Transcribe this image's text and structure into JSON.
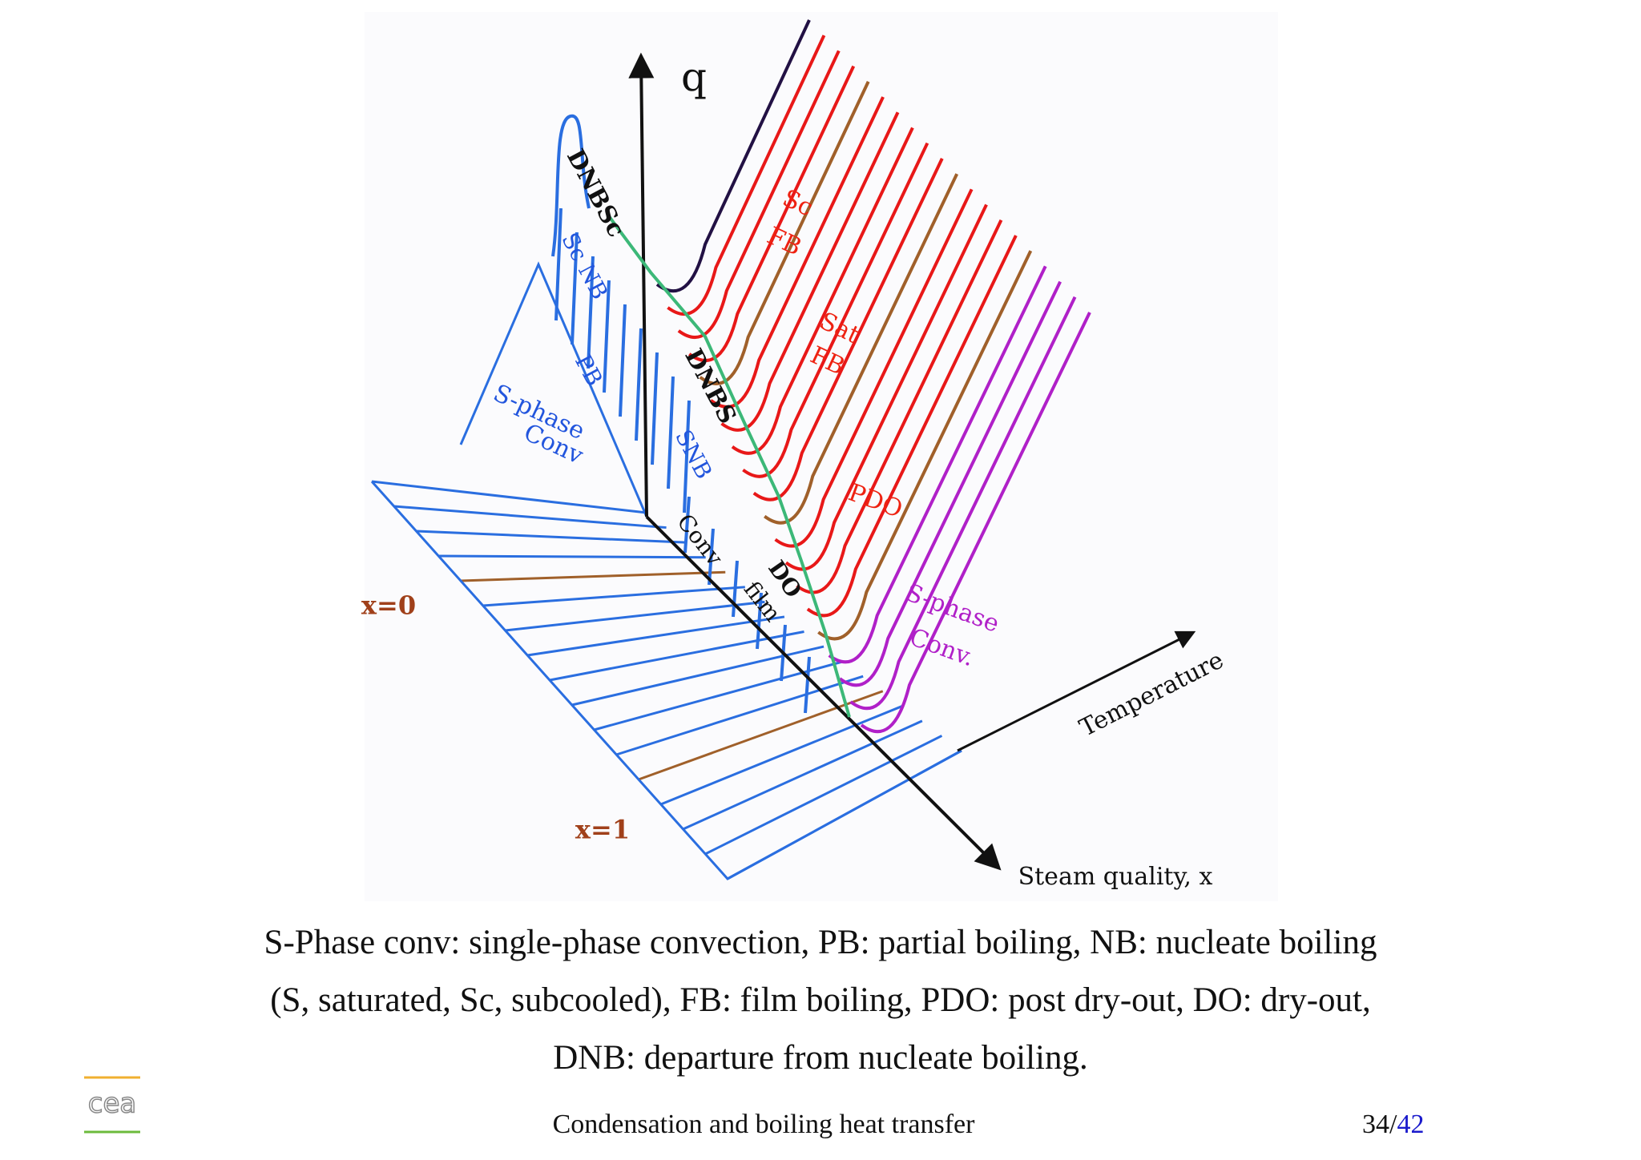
{
  "diagram": {
    "q_axis": "q",
    "dnbsc": "DNBSc",
    "sc_nb": "Sc NB",
    "pb": "PB",
    "s_phase_conv": [
      "S-phase",
      "Conv"
    ],
    "sc_fb": [
      "Sc",
      "FB"
    ],
    "sat_fb": [
      "Sat",
      "FB"
    ],
    "dnbs": "DNBS",
    "snb": "SNB",
    "pdo": "PDO",
    "conv_film": [
      "Conv",
      "film"
    ],
    "do": "DO",
    "s_phase_conv2": [
      "S-phase",
      "Conv."
    ],
    "temperature_axis": "Temperature",
    "steam_quality_axis": "Steam quality, x",
    "x0": "x=0",
    "x1": "x=1"
  },
  "caption": [
    "S-Phase conv: single-phase convection, PB: partial boiling, NB: nucleate boiling",
    "(S, saturated, Sc, subcooled), FB: film boiling, PDO: post dry-out, DO: dry-out,",
    "DNB: departure from nucleate boiling."
  ],
  "footer": {
    "logo": "cea",
    "title": "Condensation and boiling heat transfer",
    "page": {
      "current": "34",
      "separator": "/",
      "total": "42"
    }
  }
}
